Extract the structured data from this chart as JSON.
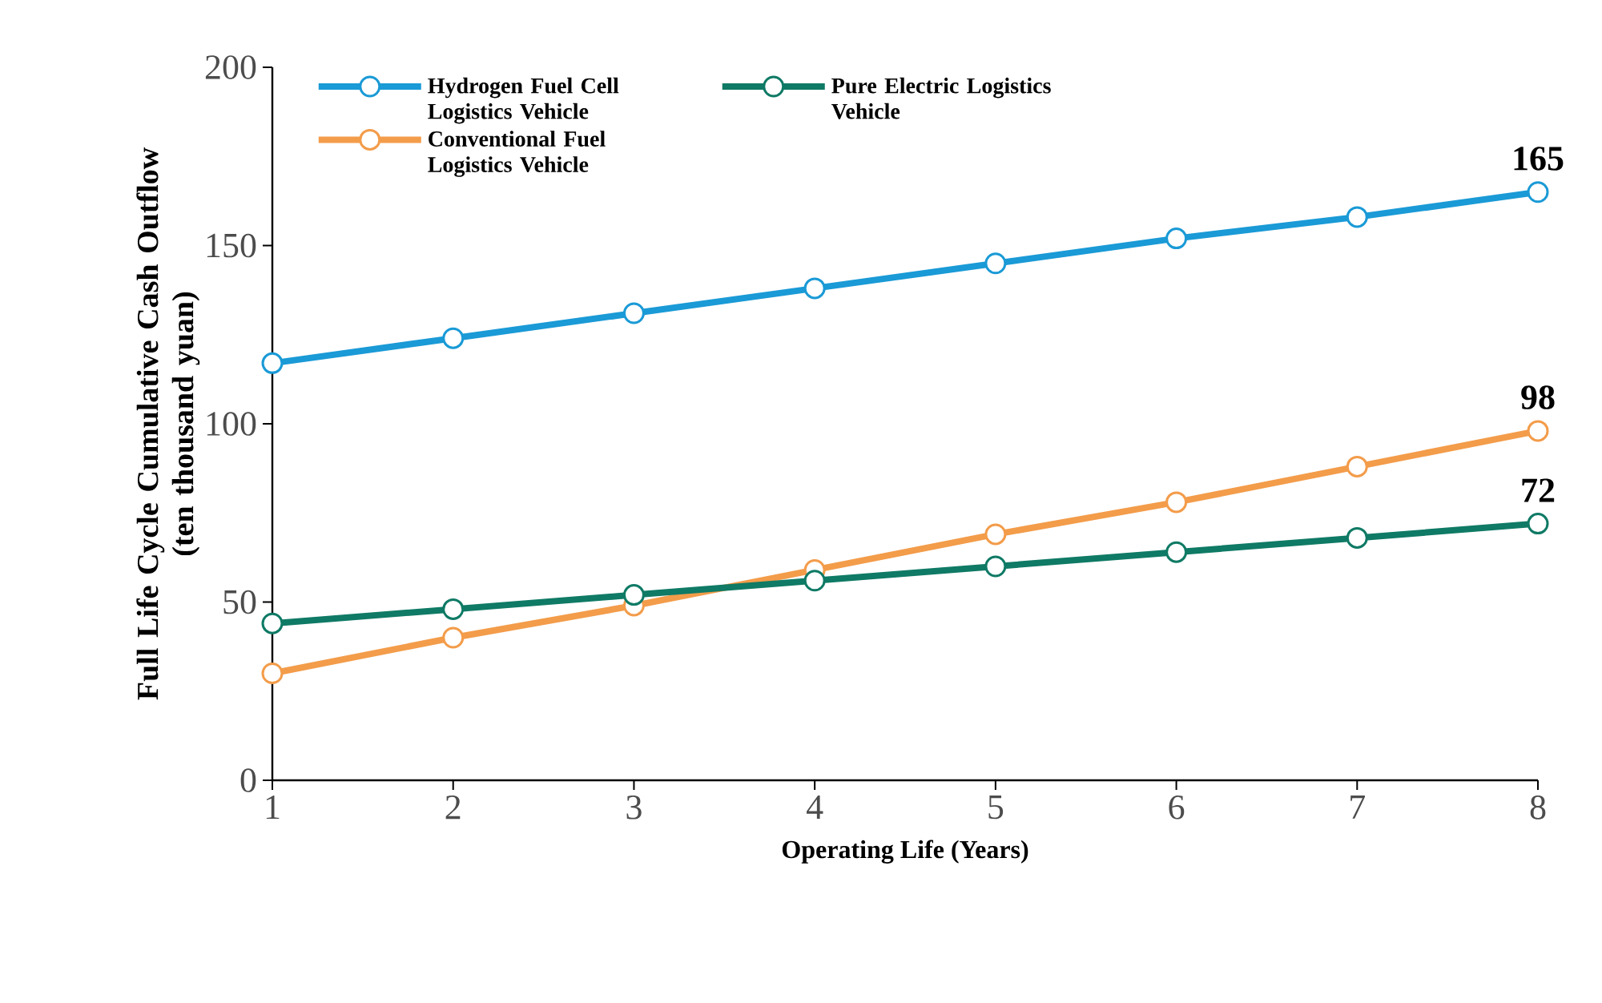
{
  "chart_data": {
    "type": "line",
    "xlabel": "Operating Life (Years)",
    "ylabel": "Full Life Cycle Cumulative Cash Outflow\n(ten thousand yuan)",
    "x": [
      1,
      2,
      3,
      4,
      5,
      6,
      7,
      8
    ],
    "series": [
      {
        "name": "Hydrogen Fuel Cell Logistics Vehicle",
        "color": "#1a9ad6",
        "values": [
          117,
          124,
          131,
          138,
          145,
          152,
          158,
          165
        ],
        "value_labels": [
          null,
          null,
          null,
          null,
          null,
          null,
          null,
          "165"
        ]
      },
      {
        "name": "Conventional Fuel Logistics Vehicle",
        "color": "#f39c4a",
        "values": [
          30,
          40,
          49,
          59,
          69,
          78,
          88,
          98
        ],
        "value_labels": [
          null,
          null,
          null,
          null,
          null,
          null,
          null,
          "98"
        ]
      },
      {
        "name": "Pure Electric Logistics Vehicle",
        "color": "#0f7a65",
        "values": [
          44,
          48,
          52,
          56,
          60,
          64,
          68,
          72
        ],
        "value_labels": [
          null,
          null,
          null,
          null,
          null,
          null,
          null,
          "72"
        ]
      }
    ],
    "xlim": [
      1,
      8
    ],
    "ylim": [
      0,
      200
    ],
    "xticks": [
      1,
      2,
      3,
      4,
      5,
      6,
      7,
      8
    ],
    "yticks": [
      0,
      50,
      100,
      150,
      200
    ],
    "grid": false,
    "legend": "top",
    "marker": "circle",
    "line_style": "solid"
  }
}
